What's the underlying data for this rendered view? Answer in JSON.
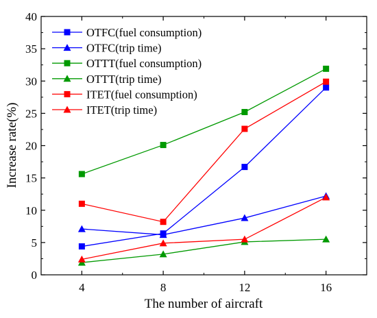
{
  "chart_data": {
    "type": "line",
    "title": "",
    "xlabel": "The number of aircraft",
    "ylabel": "Increase rate(%)",
    "x": [
      4,
      8,
      12,
      16
    ],
    "xticks": [
      "4",
      "8",
      "12",
      "16"
    ],
    "xlim": [
      2,
      18
    ],
    "ylim": [
      0,
      40
    ],
    "yticks": [
      "0",
      "5",
      "10",
      "15",
      "20",
      "25",
      "30",
      "35",
      "40"
    ],
    "grid": false,
    "legend_position": "top-left",
    "series": [
      {
        "name": "OTFC(fuel consumption)",
        "color": "#0000ff",
        "marker": "square",
        "values": [
          4.4,
          6.4,
          16.7,
          29.0
        ]
      },
      {
        "name": "OTFC(trip time)",
        "color": "#0000ff",
        "marker": "triangle",
        "values": [
          7.1,
          6.2,
          8.8,
          12.2
        ]
      },
      {
        "name": "OTTT(fuel consumption)",
        "color": "#009900",
        "marker": "square",
        "values": [
          15.6,
          20.1,
          25.2,
          31.9
        ]
      },
      {
        "name": "OTTT(trip time)",
        "color": "#009900",
        "marker": "triangle",
        "values": [
          1.9,
          3.2,
          5.1,
          5.5
        ]
      },
      {
        "name": "ITET(fuel consumption)",
        "color": "#ff0000",
        "marker": "square",
        "values": [
          11.0,
          8.2,
          22.6,
          29.9
        ]
      },
      {
        "name": "ITET(trip time)",
        "color": "#ff0000",
        "marker": "triangle",
        "values": [
          2.4,
          4.9,
          5.5,
          12.0
        ]
      }
    ]
  }
}
